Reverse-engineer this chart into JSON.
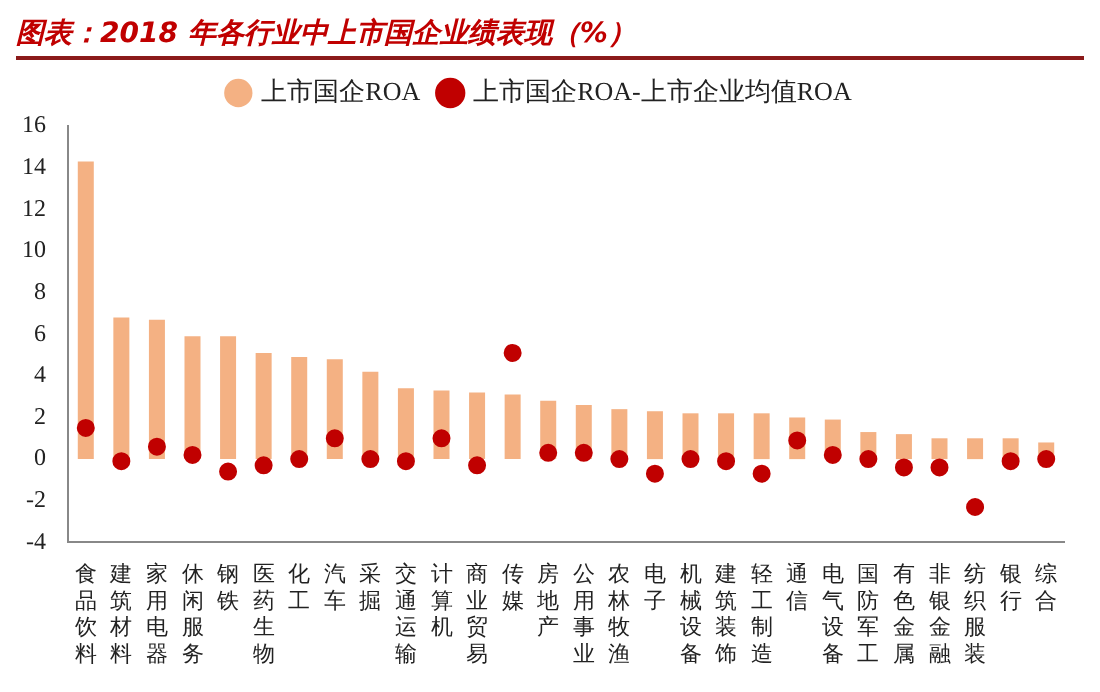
{
  "chart_data": {
    "type": "bar",
    "title": "图表：2018 年各行业中上市国企业绩表现（%）",
    "categories": [
      "食品饮料",
      "建筑材料",
      "家用电器",
      "休闲服务",
      "钢铁",
      "医药生物",
      "化工",
      "汽车",
      "采掘",
      "交通运输",
      "计算机",
      "商业贸易",
      "传媒",
      "房地产",
      "公用事业",
      "农林牧渔",
      "电子",
      "机械设备",
      "建筑装饰",
      "轻工制造",
      "通信",
      "电气设备",
      "国防军工",
      "有色金属",
      "非银金融",
      "纺织服装",
      "银行",
      "综合"
    ],
    "series": [
      {
        "name": "上市国企ROA",
        "color": "#f4b183",
        "values": [
          14.3,
          6.8,
          6.7,
          5.9,
          5.9,
          5.1,
          4.9,
          4.8,
          4.2,
          3.4,
          3.3,
          3.2,
          3.1,
          2.8,
          2.6,
          2.4,
          2.3,
          2.2,
          2.2,
          2.2,
          2.0,
          1.9,
          1.3,
          1.2,
          1.0,
          1.0,
          1.0,
          0.8
        ]
      },
      {
        "name": "上市国企ROA-上市企业均值ROA",
        "type": "scatter",
        "color": "#c00000",
        "values": [
          1.5,
          -0.1,
          0.6,
          0.2,
          -0.6,
          -0.3,
          0,
          1.0,
          0,
          -0.1,
          1.0,
          -0.3,
          5.1,
          0.3,
          0.3,
          0,
          -0.7,
          0,
          -0.1,
          -0.7,
          0.9,
          0.2,
          0,
          -0.4,
          -0.4,
          -2.3,
          -0.1,
          0
        ]
      }
    ],
    "ylim": [
      -4,
      16
    ],
    "yticks": [
      -4,
      -2,
      0,
      2,
      4,
      6,
      8,
      10,
      12,
      14,
      16
    ],
    "grid": false,
    "legend": "top",
    "marker": "circle"
  }
}
